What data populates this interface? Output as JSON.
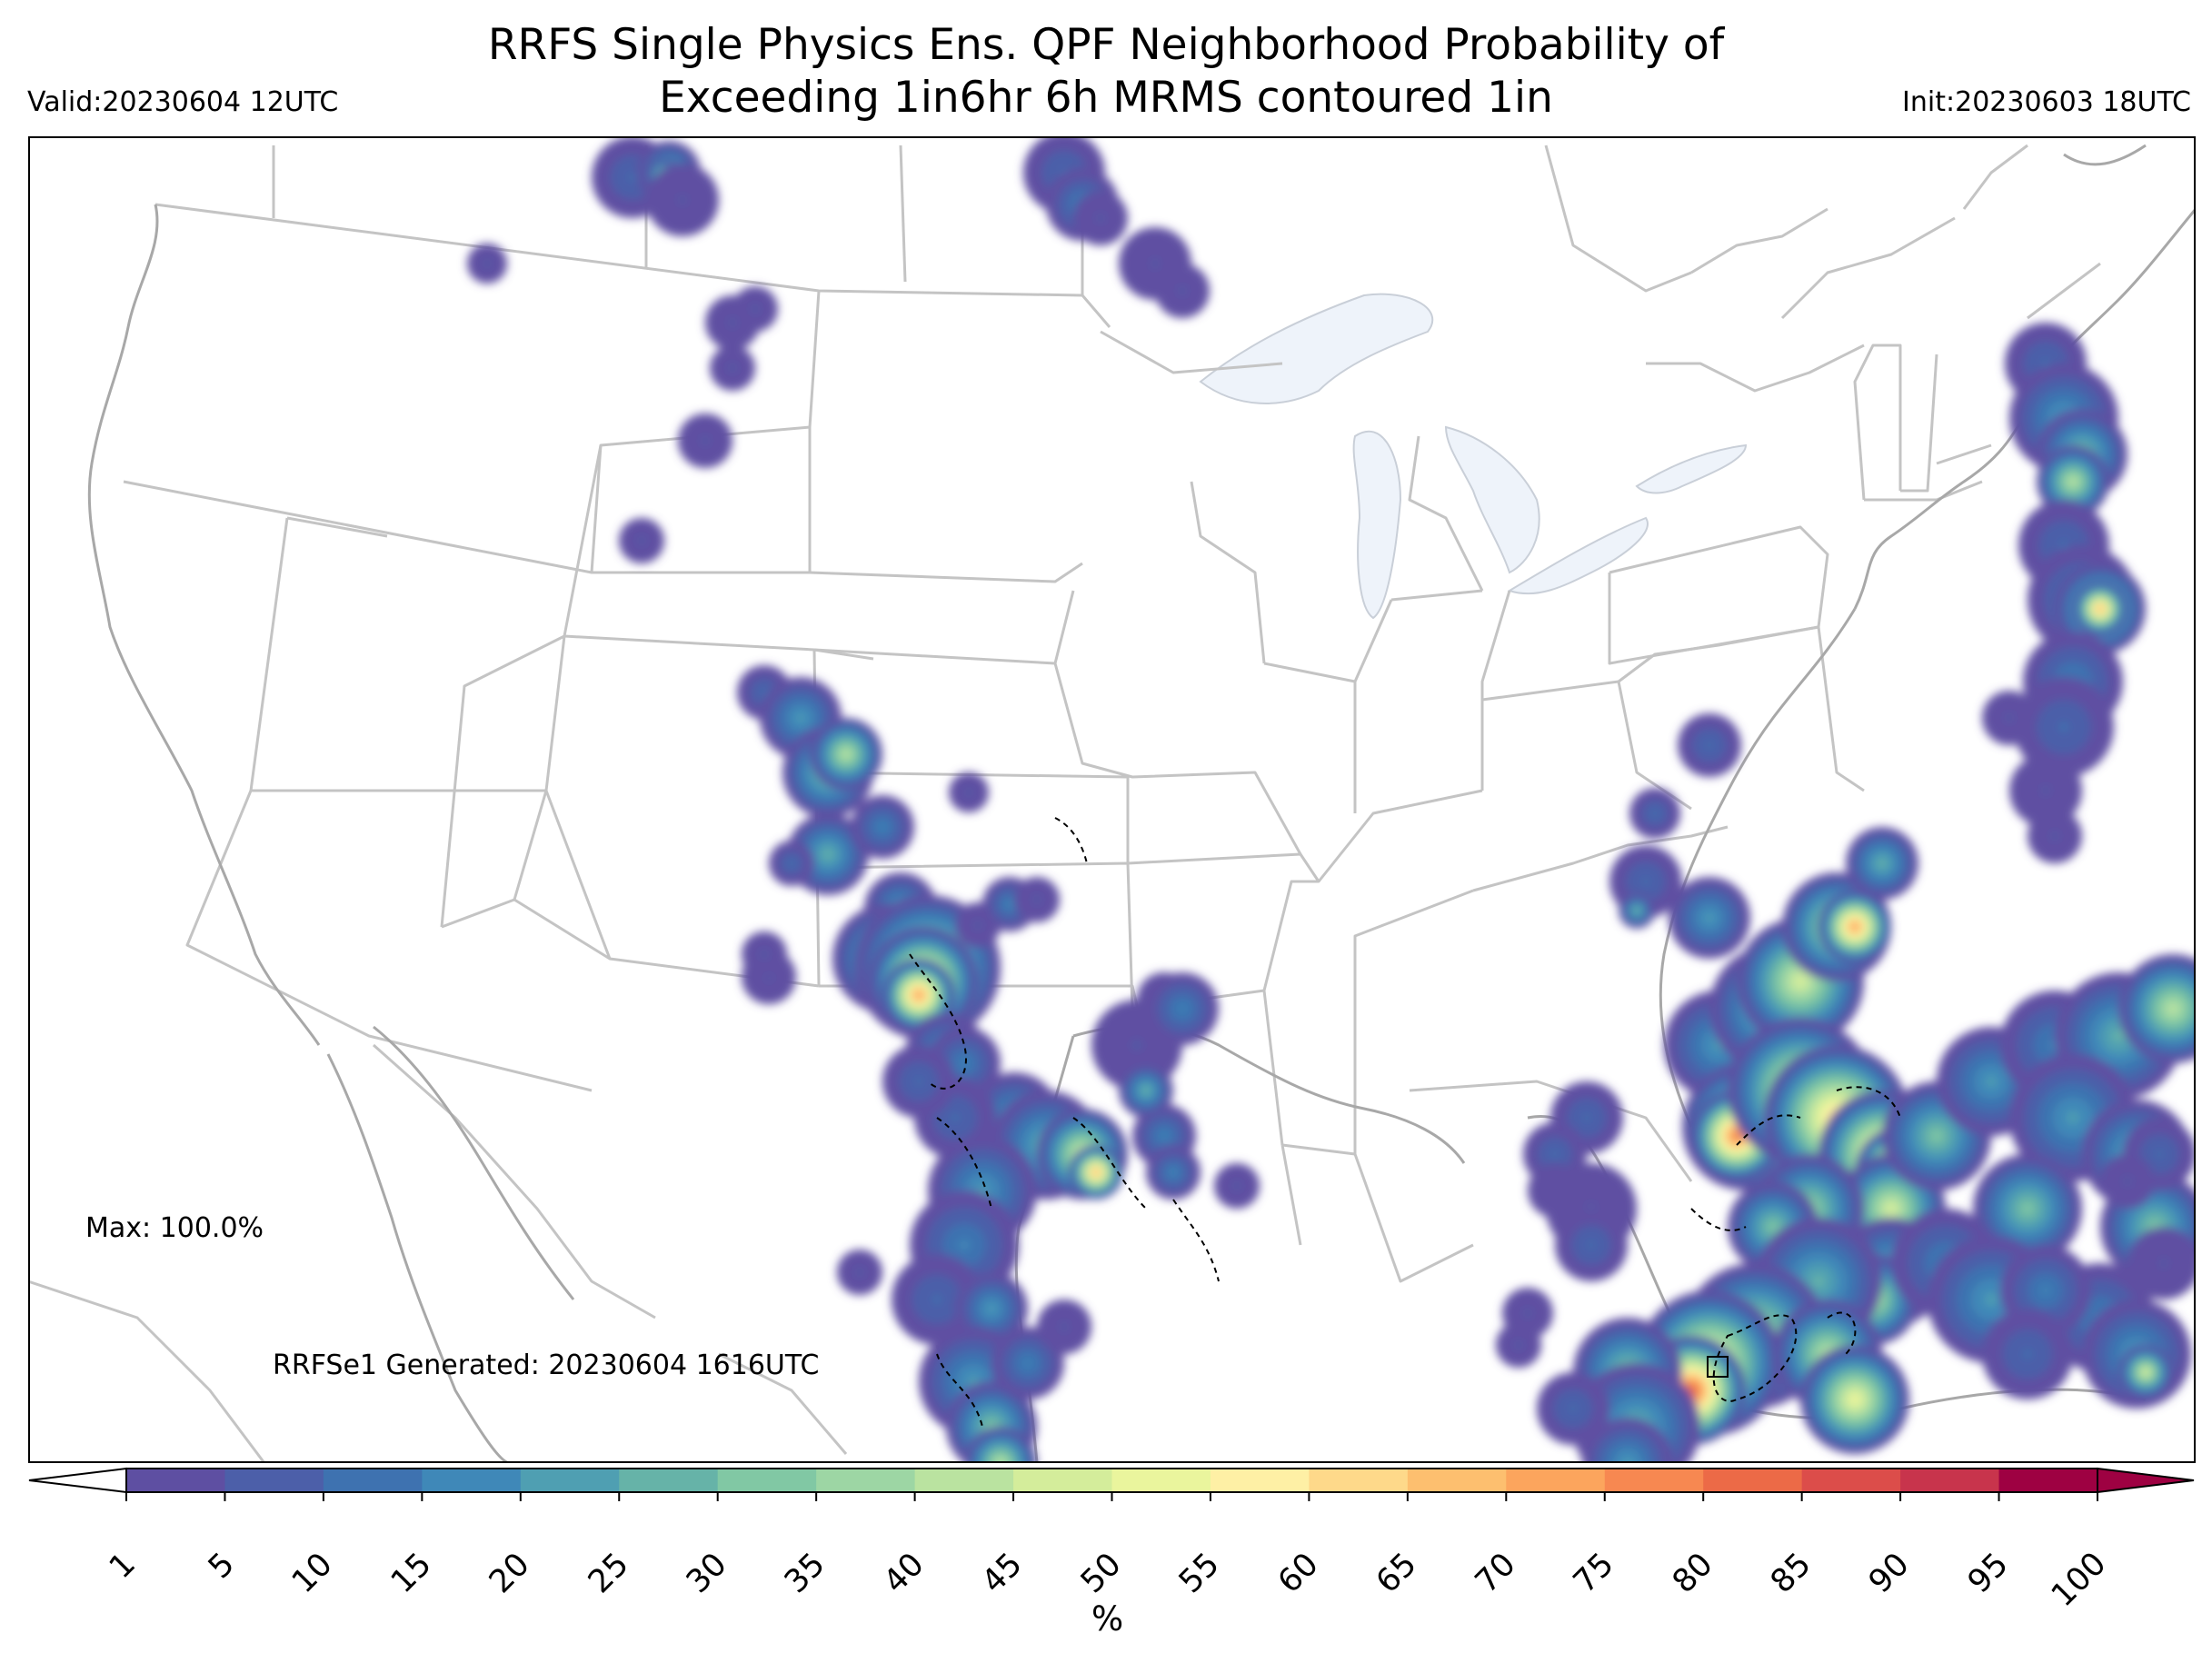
{
  "title": {
    "line1": "RRFS Single Physics Ens. QPF Neighborhood Probability of",
    "line2": "Exceeding 1in6hr 6h MRMS contoured 1in"
  },
  "valid_label": "Valid:20230604 12UTC",
  "init_label": "Init:20230603 18UTC",
  "max_label": "Max: 100.0%",
  "generated_label": "RRFSe1 Generated: 20230604 1616UTC",
  "colorbar": {
    "unit": "%",
    "ticks": [
      "1",
      "5",
      "10",
      "15",
      "20",
      "25",
      "30",
      "35",
      "40",
      "45",
      "50",
      "55",
      "60",
      "65",
      "70",
      "75",
      "80",
      "85",
      "90",
      "95",
      "100"
    ],
    "colors": [
      "#5e4fa2",
      "#4c5fa9",
      "#3e72b0",
      "#3f88b8",
      "#4f9fb2",
      "#66b3a8",
      "#81c8a4",
      "#9dd6a4",
      "#bae3a0",
      "#d4ed9b",
      "#eaf59d",
      "#fef0a5",
      "#fed98a",
      "#fdbf6f",
      "#fca55d",
      "#f78851",
      "#ec6a47",
      "#dc4d4a",
      "#c8344c",
      "#9e0142"
    ],
    "extend_under_color": "#ffffff",
    "extend_over_color": "#9e0142"
  },
  "colors": {
    "state_lines": "#c4c4c4",
    "lakes": "#eef3fa",
    "frame": "#000000"
  }
}
